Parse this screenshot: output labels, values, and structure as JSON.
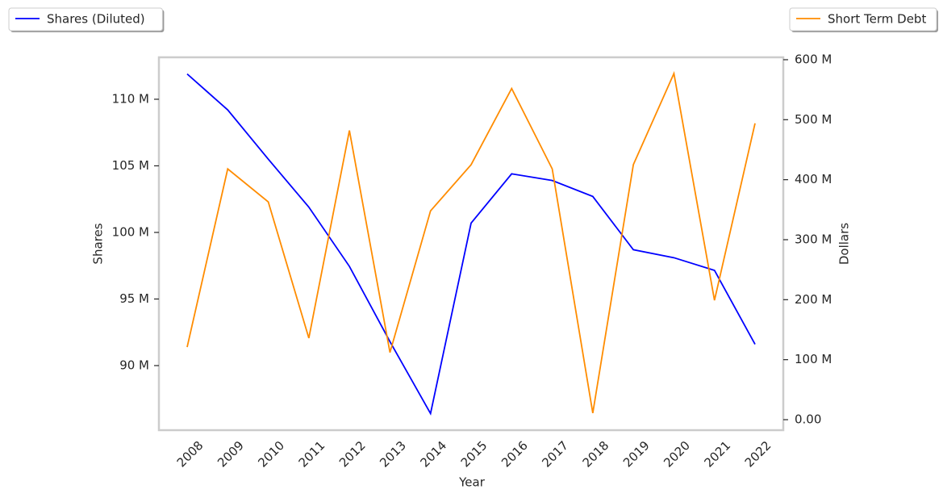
{
  "chart_data": {
    "type": "line",
    "x_label": "Year",
    "y_label": "Shares",
    "y2_label": "Dollars",
    "categories": [
      "2008",
      "2009",
      "2010",
      "2011",
      "2012",
      "2013",
      "2014",
      "2015",
      "2016",
      "2017",
      "2018",
      "2019",
      "2020",
      "2021",
      "2022"
    ],
    "series": [
      {
        "name": "Shares (Diluted)",
        "color": "#0000ff",
        "axis": "y",
        "legend": "upper left",
        "values": [
          111.9,
          109.2,
          105.5,
          101.9,
          97.45,
          91.8,
          86.4,
          100.7,
          104.4,
          103.9,
          102.7,
          98.7,
          98.1,
          97.15,
          91.6
        ]
      },
      {
        "name": "Short Term Debt",
        "color": "#ff8c00",
        "axis": "y2",
        "legend": "upper right",
        "values": [
          121,
          418,
          363,
          136,
          482,
          112,
          348,
          425,
          552,
          418,
          11,
          425,
          577,
          199,
          494
        ]
      }
    ],
    "ylim": [
      85.15,
      113.15
    ],
    "yticks": [
      {
        "value": 90,
        "label": "90 M"
      },
      {
        "value": 95,
        "label": "95 M"
      },
      {
        "value": 100,
        "label": "100 M"
      },
      {
        "value": 105,
        "label": "105 M"
      },
      {
        "value": 110,
        "label": "110 M"
      }
    ],
    "y2lim": [
      -17.5,
      604
    ],
    "y2ticks": [
      {
        "value": 0,
        "label": "0.00"
      },
      {
        "value": 100,
        "label": "100 M"
      },
      {
        "value": 200,
        "label": "200 M"
      },
      {
        "value": 300,
        "label": "300 M"
      },
      {
        "value": 400,
        "label": "400 M"
      },
      {
        "value": 500,
        "label": "500 M"
      },
      {
        "value": 600,
        "label": "600 M"
      }
    ],
    "grid": false
  }
}
